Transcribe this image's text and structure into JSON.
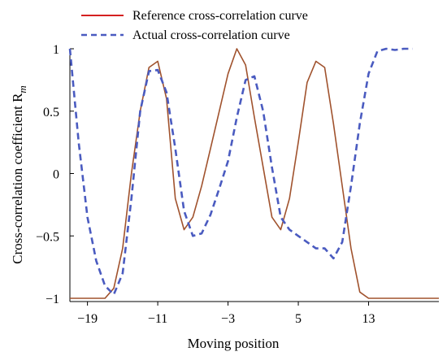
{
  "chart_data": {
    "type": "line",
    "xlabel": "Moving position",
    "ylabel": "Cross-correlation coefficient R",
    "ylabel_subscript": "m",
    "xlim": [
      -21,
      21
    ],
    "ylim": [
      -1,
      1
    ],
    "x_ticks": [
      -19,
      -11,
      -3,
      5,
      13
    ],
    "x_tick_labels": [
      "−19",
      "−11",
      "−3",
      "5",
      "13"
    ],
    "y_ticks": [
      1,
      0.5,
      0,
      -0.5,
      -1
    ],
    "y_tick_labels": [
      "1",
      "0.5",
      "0",
      "−0.5",
      "−1"
    ],
    "legend_position": "top",
    "series": [
      {
        "name": "Reference cross-correlation curve",
        "color": "#a0522d",
        "style": "solid",
        "x": [
          -21,
          -20,
          -19,
          -18,
          -17,
          -16,
          -15,
          -14,
          -13,
          -12,
          -11,
          -10,
          -9,
          -8,
          -7,
          -6,
          -5,
          -4,
          -3,
          -2,
          -1,
          0,
          1,
          2,
          3,
          4,
          5,
          6,
          7,
          8,
          9,
          10,
          11,
          12,
          13,
          14,
          15,
          16,
          17,
          18,
          19,
          20,
          21
        ],
        "values": [
          -1,
          -1,
          -1,
          -1,
          -1,
          -0.92,
          -0.6,
          0,
          0.5,
          0.85,
          0.9,
          0.6,
          -0.2,
          -0.45,
          -0.35,
          -0.1,
          0.2,
          0.5,
          0.8,
          1.0,
          0.87,
          0.45,
          0.05,
          -0.35,
          -0.45,
          -0.2,
          0.25,
          0.73,
          0.9,
          0.85,
          0.4,
          -0.1,
          -0.6,
          -0.95,
          -1,
          -1,
          -1,
          -1,
          -1,
          -1,
          -1,
          -1,
          -1
        ]
      },
      {
        "name": "Actual cross-correlation curve",
        "color": "#4a5bc0",
        "style": "dashed",
        "x": [
          -21,
          -20,
          -19,
          -18,
          -17,
          -16,
          -15,
          -14,
          -13,
          -12,
          -11,
          -10,
          -9,
          -8,
          -7,
          -6,
          -5,
          -4,
          -3,
          -2,
          -1,
          0,
          1,
          2,
          3,
          4,
          5,
          6,
          7,
          8,
          9,
          10,
          11,
          12,
          13,
          14,
          15,
          16,
          17,
          18
        ],
        "values": [
          1.0,
          0.25,
          -0.35,
          -0.7,
          -0.9,
          -0.97,
          -0.8,
          -0.2,
          0.5,
          0.82,
          0.83,
          0.65,
          0.2,
          -0.3,
          -0.5,
          -0.48,
          -0.33,
          -0.12,
          0.1,
          0.45,
          0.75,
          0.78,
          0.5,
          0.05,
          -0.35,
          -0.45,
          -0.5,
          -0.55,
          -0.6,
          -0.6,
          -0.68,
          -0.55,
          -0.1,
          0.4,
          0.8,
          0.98,
          1.0,
          0.99,
          1.0,
          1.0
        ]
      }
    ]
  }
}
